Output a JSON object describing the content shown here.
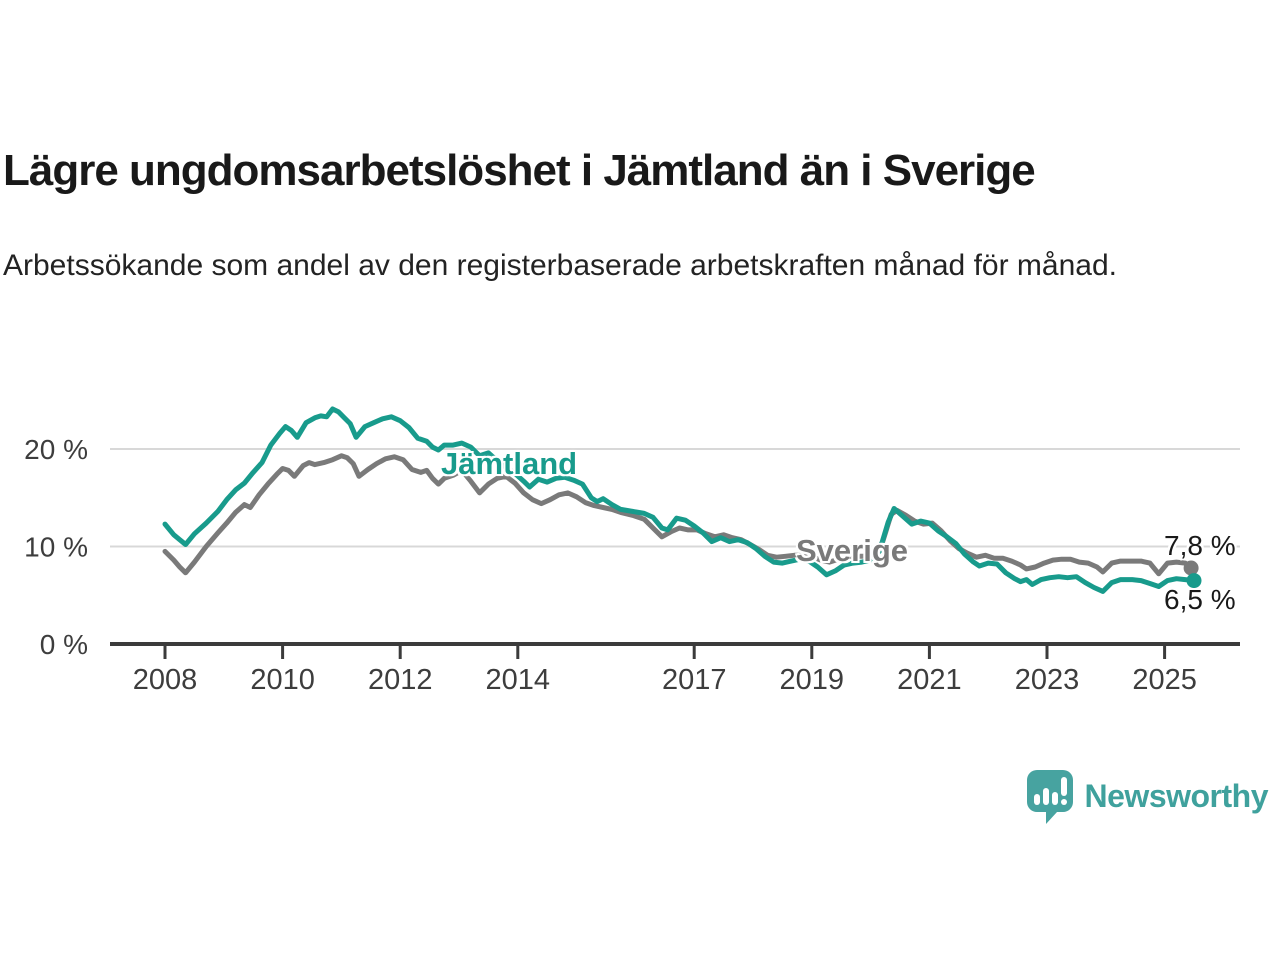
{
  "header": {
    "title": "Lägre ungdomsarbetslöshet i Jämtland än i Sverige",
    "subtitle": "Arbetssökande som andel av den registerbaserade arbetskraften månad för månad."
  },
  "footer": {
    "brand": "Newsworthy"
  },
  "colors": {
    "jamtland": "#189B8C",
    "sverige": "#7A7A7A",
    "grid": "#D8D8D8",
    "axis": "#3B3B3B",
    "tick_text": "#3D3D3D",
    "text": "#191919",
    "brand": "#3FA19D",
    "logo": "#47A3A0"
  },
  "chart_data": {
    "type": "line",
    "title": "Lägre ungdomsarbetslöshet i Jämtland än i Sverige",
    "subtitle": "Arbetssökande som andel av den registerbaserade arbetskraften månad för månad.",
    "xlabel": "",
    "ylabel": "",
    "xlim": [
      2007.9,
      2026.3
    ],
    "ylim": [
      0,
      26
    ],
    "grid": "horizontal",
    "legend_position": "inline-labels",
    "x_ticks": [
      2008,
      2010,
      2012,
      2014,
      2017,
      2019,
      2021,
      2023,
      2025
    ],
    "y_ticks": [
      {
        "value": 0,
        "label": "0 %"
      },
      {
        "value": 10,
        "label": "10 %"
      },
      {
        "value": 20,
        "label": "20 %"
      }
    ],
    "series": [
      {
        "name": "Sverige",
        "color": "#7A7A7A",
        "end_value": 7.8,
        "end_label": "7,8 %",
        "points": [
          [
            2008.0,
            9.5
          ],
          [
            2008.15,
            8.6
          ],
          [
            2008.25,
            7.9
          ],
          [
            2008.35,
            7.3
          ],
          [
            2008.5,
            8.4
          ],
          [
            2008.7,
            10.0
          ],
          [
            2008.9,
            11.4
          ],
          [
            2009.05,
            12.4
          ],
          [
            2009.2,
            13.5
          ],
          [
            2009.35,
            14.3
          ],
          [
            2009.45,
            14.0
          ],
          [
            2009.6,
            15.3
          ],
          [
            2009.75,
            16.4
          ],
          [
            2009.9,
            17.4
          ],
          [
            2010.0,
            18.0
          ],
          [
            2010.1,
            17.8
          ],
          [
            2010.2,
            17.2
          ],
          [
            2010.35,
            18.3
          ],
          [
            2010.45,
            18.6
          ],
          [
            2010.55,
            18.4
          ],
          [
            2010.7,
            18.6
          ],
          [
            2010.85,
            18.9
          ],
          [
            2011.0,
            19.3
          ],
          [
            2011.1,
            19.1
          ],
          [
            2011.2,
            18.5
          ],
          [
            2011.3,
            17.2
          ],
          [
            2011.45,
            17.9
          ],
          [
            2011.6,
            18.5
          ],
          [
            2011.75,
            19.0
          ],
          [
            2011.9,
            19.2
          ],
          [
            2012.05,
            18.9
          ],
          [
            2012.2,
            17.9
          ],
          [
            2012.35,
            17.6
          ],
          [
            2012.45,
            17.8
          ],
          [
            2012.55,
            17.0
          ],
          [
            2012.65,
            16.4
          ],
          [
            2012.75,
            17.0
          ],
          [
            2012.9,
            17.3
          ],
          [
            2013.05,
            17.8
          ],
          [
            2013.2,
            16.7
          ],
          [
            2013.35,
            15.5
          ],
          [
            2013.5,
            16.4
          ],
          [
            2013.65,
            17.0
          ],
          [
            2013.8,
            17.2
          ],
          [
            2013.95,
            16.5
          ],
          [
            2014.1,
            15.5
          ],
          [
            2014.25,
            14.8
          ],
          [
            2014.4,
            14.4
          ],
          [
            2014.55,
            14.8
          ],
          [
            2014.7,
            15.3
          ],
          [
            2014.85,
            15.5
          ],
          [
            2015.0,
            15.1
          ],
          [
            2015.15,
            14.5
          ],
          [
            2015.3,
            14.2
          ],
          [
            2015.45,
            14.0
          ],
          [
            2015.6,
            13.8
          ],
          [
            2015.75,
            13.5
          ],
          [
            2015.95,
            13.2
          ],
          [
            2016.15,
            12.8
          ],
          [
            2016.3,
            11.9
          ],
          [
            2016.45,
            11.0
          ],
          [
            2016.6,
            11.5
          ],
          [
            2016.75,
            11.9
          ],
          [
            2016.9,
            11.7
          ],
          [
            2017.05,
            11.7
          ],
          [
            2017.2,
            11.3
          ],
          [
            2017.35,
            11.0
          ],
          [
            2017.5,
            11.2
          ],
          [
            2017.65,
            10.9
          ],
          [
            2017.8,
            10.7
          ],
          [
            2017.95,
            10.2
          ],
          [
            2018.1,
            9.7
          ],
          [
            2018.25,
            9.1
          ],
          [
            2018.4,
            8.9
          ],
          [
            2018.55,
            9.0
          ],
          [
            2018.7,
            9.1
          ],
          [
            2018.85,
            9.1
          ],
          [
            2019.0,
            9.0
          ],
          [
            2019.15,
            8.6
          ],
          [
            2019.3,
            8.4
          ],
          [
            2019.45,
            8.7
          ],
          [
            2019.6,
            8.9
          ],
          [
            2019.75,
            9.0
          ],
          [
            2019.9,
            9.0
          ],
          [
            2020.05,
            9.3
          ],
          [
            2020.2,
            10.4
          ],
          [
            2020.35,
            13.3
          ],
          [
            2020.45,
            13.7
          ],
          [
            2020.6,
            13.2
          ],
          [
            2020.75,
            12.6
          ],
          [
            2020.9,
            12.3
          ],
          [
            2021.05,
            12.4
          ],
          [
            2021.2,
            11.6
          ],
          [
            2021.35,
            10.6
          ],
          [
            2021.5,
            9.8
          ],
          [
            2021.65,
            9.3
          ],
          [
            2021.8,
            8.9
          ],
          [
            2021.95,
            9.1
          ],
          [
            2022.1,
            8.8
          ],
          [
            2022.25,
            8.8
          ],
          [
            2022.4,
            8.5
          ],
          [
            2022.55,
            8.1
          ],
          [
            2022.65,
            7.7
          ],
          [
            2022.8,
            7.9
          ],
          [
            2022.95,
            8.3
          ],
          [
            2023.1,
            8.6
          ],
          [
            2023.25,
            8.7
          ],
          [
            2023.4,
            8.7
          ],
          [
            2023.55,
            8.4
          ],
          [
            2023.7,
            8.3
          ],
          [
            2023.85,
            7.9
          ],
          [
            2023.95,
            7.4
          ],
          [
            2024.1,
            8.3
          ],
          [
            2024.25,
            8.5
          ],
          [
            2024.45,
            8.5
          ],
          [
            2024.6,
            8.5
          ],
          [
            2024.75,
            8.3
          ],
          [
            2024.9,
            7.2
          ],
          [
            2025.05,
            8.3
          ],
          [
            2025.2,
            8.4
          ],
          [
            2025.35,
            8.3
          ],
          [
            2025.45,
            7.8
          ]
        ]
      },
      {
        "name": "Jämtland",
        "color": "#189B8C",
        "end_value": 6.5,
        "end_label": "6,5 %",
        "points": [
          [
            2008.0,
            12.3
          ],
          [
            2008.15,
            11.2
          ],
          [
            2008.25,
            10.7
          ],
          [
            2008.35,
            10.2
          ],
          [
            2008.5,
            11.3
          ],
          [
            2008.7,
            12.4
          ],
          [
            2008.9,
            13.6
          ],
          [
            2009.05,
            14.8
          ],
          [
            2009.2,
            15.8
          ],
          [
            2009.35,
            16.5
          ],
          [
            2009.5,
            17.6
          ],
          [
            2009.65,
            18.6
          ],
          [
            2009.8,
            20.4
          ],
          [
            2009.95,
            21.6
          ],
          [
            2010.05,
            22.3
          ],
          [
            2010.15,
            21.9
          ],
          [
            2010.25,
            21.2
          ],
          [
            2010.4,
            22.7
          ],
          [
            2010.55,
            23.2
          ],
          [
            2010.65,
            23.4
          ],
          [
            2010.75,
            23.3
          ],
          [
            2010.85,
            24.1
          ],
          [
            2010.95,
            23.8
          ],
          [
            2011.05,
            23.2
          ],
          [
            2011.15,
            22.6
          ],
          [
            2011.25,
            21.2
          ],
          [
            2011.4,
            22.3
          ],
          [
            2011.55,
            22.7
          ],
          [
            2011.7,
            23.1
          ],
          [
            2011.85,
            23.3
          ],
          [
            2012.0,
            22.9
          ],
          [
            2012.15,
            22.2
          ],
          [
            2012.3,
            21.1
          ],
          [
            2012.45,
            20.8
          ],
          [
            2012.55,
            20.2
          ],
          [
            2012.65,
            19.9
          ],
          [
            2012.75,
            20.4
          ],
          [
            2012.9,
            20.4
          ],
          [
            2013.05,
            20.6
          ],
          [
            2013.2,
            20.2
          ],
          [
            2013.35,
            19.3
          ],
          [
            2013.5,
            19.6
          ],
          [
            2013.65,
            18.8
          ],
          [
            2013.8,
            18.1
          ],
          [
            2013.95,
            17.5
          ],
          [
            2014.1,
            16.7
          ],
          [
            2014.2,
            16.1
          ],
          [
            2014.35,
            16.9
          ],
          [
            2014.5,
            16.6
          ],
          [
            2014.65,
            17.0
          ],
          [
            2014.8,
            17.1
          ],
          [
            2014.95,
            16.8
          ],
          [
            2015.1,
            16.4
          ],
          [
            2015.25,
            15.0
          ],
          [
            2015.35,
            14.6
          ],
          [
            2015.45,
            14.9
          ],
          [
            2015.6,
            14.3
          ],
          [
            2015.75,
            13.8
          ],
          [
            2015.95,
            13.6
          ],
          [
            2016.15,
            13.4
          ],
          [
            2016.3,
            13.0
          ],
          [
            2016.45,
            11.9
          ],
          [
            2016.55,
            11.7
          ],
          [
            2016.7,
            12.9
          ],
          [
            2016.85,
            12.7
          ],
          [
            2017.0,
            12.1
          ],
          [
            2017.15,
            11.4
          ],
          [
            2017.3,
            10.5
          ],
          [
            2017.45,
            10.9
          ],
          [
            2017.6,
            10.5
          ],
          [
            2017.75,
            10.7
          ],
          [
            2017.9,
            10.4
          ],
          [
            2018.05,
            9.8
          ],
          [
            2018.2,
            9.0
          ],
          [
            2018.35,
            8.4
          ],
          [
            2018.5,
            8.3
          ],
          [
            2018.65,
            8.5
          ],
          [
            2018.8,
            8.7
          ],
          [
            2018.95,
            8.5
          ],
          [
            2019.1,
            7.9
          ],
          [
            2019.25,
            7.1
          ],
          [
            2019.4,
            7.5
          ],
          [
            2019.55,
            8.1
          ],
          [
            2019.7,
            8.3
          ],
          [
            2019.85,
            8.4
          ],
          [
            2020.0,
            8.6
          ],
          [
            2020.15,
            9.5
          ],
          [
            2020.3,
            12.5
          ],
          [
            2020.4,
            13.9
          ],
          [
            2020.55,
            13.1
          ],
          [
            2020.7,
            12.3
          ],
          [
            2020.85,
            12.6
          ],
          [
            2021.0,
            12.4
          ],
          [
            2021.15,
            11.6
          ],
          [
            2021.3,
            11.0
          ],
          [
            2021.45,
            10.3
          ],
          [
            2021.6,
            9.2
          ],
          [
            2021.75,
            8.4
          ],
          [
            2021.85,
            8.0
          ],
          [
            2022.0,
            8.3
          ],
          [
            2022.15,
            8.2
          ],
          [
            2022.3,
            7.3
          ],
          [
            2022.45,
            6.7
          ],
          [
            2022.55,
            6.4
          ],
          [
            2022.65,
            6.6
          ],
          [
            2022.75,
            6.1
          ],
          [
            2022.9,
            6.6
          ],
          [
            2023.05,
            6.8
          ],
          [
            2023.2,
            6.9
          ],
          [
            2023.35,
            6.8
          ],
          [
            2023.5,
            6.9
          ],
          [
            2023.65,
            6.3
          ],
          [
            2023.8,
            5.8
          ],
          [
            2023.95,
            5.4
          ],
          [
            2024.1,
            6.3
          ],
          [
            2024.25,
            6.6
          ],
          [
            2024.45,
            6.6
          ],
          [
            2024.6,
            6.5
          ],
          [
            2024.75,
            6.2
          ],
          [
            2024.9,
            5.9
          ],
          [
            2025.05,
            6.5
          ],
          [
            2025.2,
            6.7
          ],
          [
            2025.35,
            6.6
          ],
          [
            2025.5,
            6.5
          ]
        ]
      }
    ],
    "annotations": [
      {
        "text": "Jämtland",
        "series": "Jämtland"
      },
      {
        "text": "Sverige",
        "series": "Sverige"
      }
    ]
  }
}
